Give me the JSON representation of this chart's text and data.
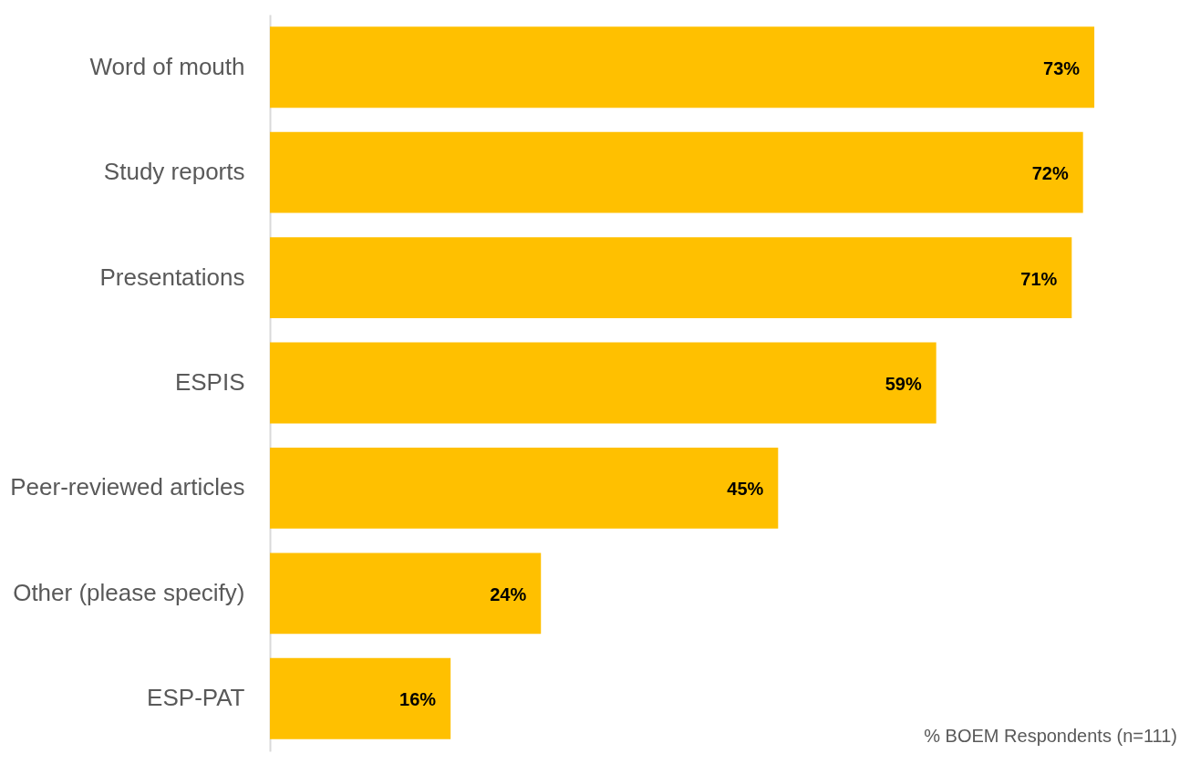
{
  "chart_data": {
    "type": "bar",
    "orientation": "horizontal",
    "categories": [
      "Word of mouth",
      "Study reports",
      "Presentations",
      "ESPIS",
      "Peer-reviewed articles",
      "Other (please specify)",
      "ESP-PAT"
    ],
    "values": [
      73,
      72,
      71,
      59,
      45,
      24,
      16
    ],
    "value_labels": [
      "73%",
      "72%",
      "71%",
      "59%",
      "45%",
      "24%",
      "16%"
    ],
    "color": "#ffc000",
    "annotations": [
      "% BOEM Respondents (n=111)"
    ]
  }
}
